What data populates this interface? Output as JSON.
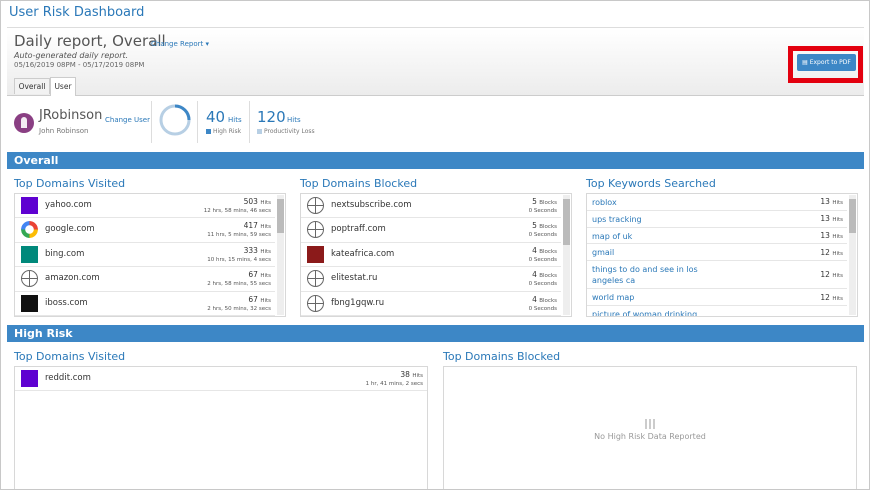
{
  "header": {
    "title": "User Risk Dashboard"
  },
  "report": {
    "title": "Daily report, Overall",
    "change": "Change Report",
    "subtitle": "Auto-generated daily report.",
    "range": "05/16/2019 08PM - 05/17/2019 08PM",
    "export": "Export to PDF"
  },
  "tabs": [
    "Overall",
    "User"
  ],
  "user": {
    "username": "JRobinson",
    "full_name": "John Robinson",
    "change": "Change User"
  },
  "stats": [
    {
      "value": 40,
      "unit": "Hits",
      "label": "High Risk"
    },
    {
      "value": 120,
      "unit": "Hits",
      "label": "Productivity Loss"
    }
  ],
  "sections": [
    {
      "title": "Overall",
      "panels": [
        {
          "title": "Top Domains Visited",
          "rows": [
            {
              "name": "yahoo.com",
              "count": 503,
              "unit": "Hits",
              "detail": "12 hrs, 58 mins, 46 secs"
            },
            {
              "name": "google.com",
              "count": 417,
              "unit": "Hits",
              "detail": "11 hrs, 5 mins, 59 secs"
            },
            {
              "name": "bing.com",
              "count": 333,
              "unit": "Hits",
              "detail": "10 hrs, 15 mins, 4 secs"
            },
            {
              "name": "amazon.com",
              "count": 67,
              "unit": "Hits",
              "detail": "2 hrs, 58 mins, 55 secs"
            },
            {
              "name": "iboss.com",
              "count": 67,
              "unit": "Hits",
              "detail": "2 hrs, 50 mins, 32 secs"
            }
          ]
        },
        {
          "title": "Top Domains Blocked",
          "rows": [
            {
              "name": "nextsubscribe.com",
              "count": 5,
              "unit": "Blocks",
              "detail": "0 Seconds"
            },
            {
              "name": "poptraff.com",
              "count": 5,
              "unit": "Blocks",
              "detail": "0 Seconds"
            },
            {
              "name": "kateafrica.com",
              "count": 4,
              "unit": "Blocks",
              "detail": "0 Seconds"
            },
            {
              "name": "elitestat.ru",
              "count": 4,
              "unit": "Blocks",
              "detail": "0 Seconds"
            },
            {
              "name": "fbng1gqw.ru",
              "count": 4,
              "unit": "Blocks",
              "detail": "0 Seconds"
            }
          ]
        },
        {
          "title": "Top Keywords Searched",
          "keywords": [
            {
              "name": "roblox",
              "count": 13,
              "unit": "Hits"
            },
            {
              "name": "ups tracking",
              "count": 13,
              "unit": "Hits"
            },
            {
              "name": "map of uk",
              "count": 13,
              "unit": "Hits"
            },
            {
              "name": "gmail",
              "count": 12,
              "unit": "Hits"
            },
            {
              "name": "things to do and see in los angeles ca",
              "count": 12,
              "unit": "Hits"
            },
            {
              "name": "world map",
              "count": 12,
              "unit": "Hits"
            },
            {
              "name": "picture of woman drinking large"
            }
          ]
        }
      ]
    },
    {
      "title": "High Risk",
      "panels": [
        {
          "title": "Top Domains Visited",
          "rows": [
            {
              "name": "reddit.com",
              "count": 38,
              "unit": "Hits",
              "detail": "1 hr, 41 mins, 2 secs"
            }
          ]
        },
        {
          "title": "Top Domains Blocked",
          "empty": "No High Risk Data Reported"
        }
      ]
    }
  ]
}
